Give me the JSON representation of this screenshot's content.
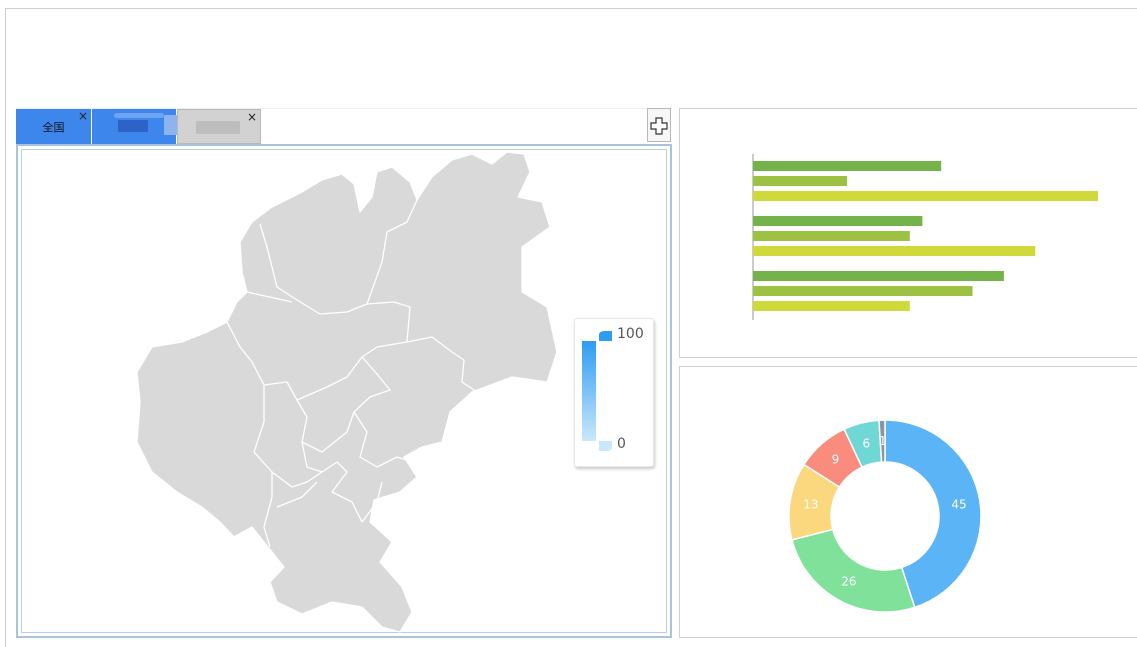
{
  "tabs": [
    {
      "label": "全国",
      "close": "×",
      "active": true
    },
    {
      "label": "",
      "close": "",
      "active": true
    },
    {
      "label": "",
      "close": "×",
      "active": false
    }
  ],
  "add_button_icon": "plus-icon",
  "map": {
    "visual_map": {
      "max_label": "100",
      "min_label": "0",
      "color_high": "#2e9cf3",
      "color_low": "#c9e8fc"
    },
    "region_color": "#d9d9d9"
  },
  "chart_data": [
    {
      "type": "bar",
      "orientation": "horizontal",
      "groups": 3,
      "series": [
        {
          "values": [
            30,
            27,
            40
          ],
          "color": "#74b34a"
        },
        {
          "values": [
            15,
            25,
            35
          ],
          "color": "#9dc243"
        },
        {
          "values": [
            55,
            45,
            25
          ],
          "color": "#cfd93a"
        }
      ],
      "grid": false,
      "legend": false
    },
    {
      "type": "pie",
      "variant": "donut",
      "slices": [
        {
          "value": 45,
          "label": "45",
          "color": "#5bb4f5"
        },
        {
          "value": 26,
          "label": "26",
          "color": "#7fe19a"
        },
        {
          "value": 13,
          "label": "13",
          "color": "#fbd77d"
        },
        {
          "value": 9,
          "label": "9",
          "color": "#fa8c7e"
        },
        {
          "value": 6,
          "label": "6",
          "color": "#6fd8d5"
        },
        {
          "value": 1,
          "label": "1",
          "color": "#8a93a8"
        }
      ],
      "legend": "right"
    }
  ]
}
